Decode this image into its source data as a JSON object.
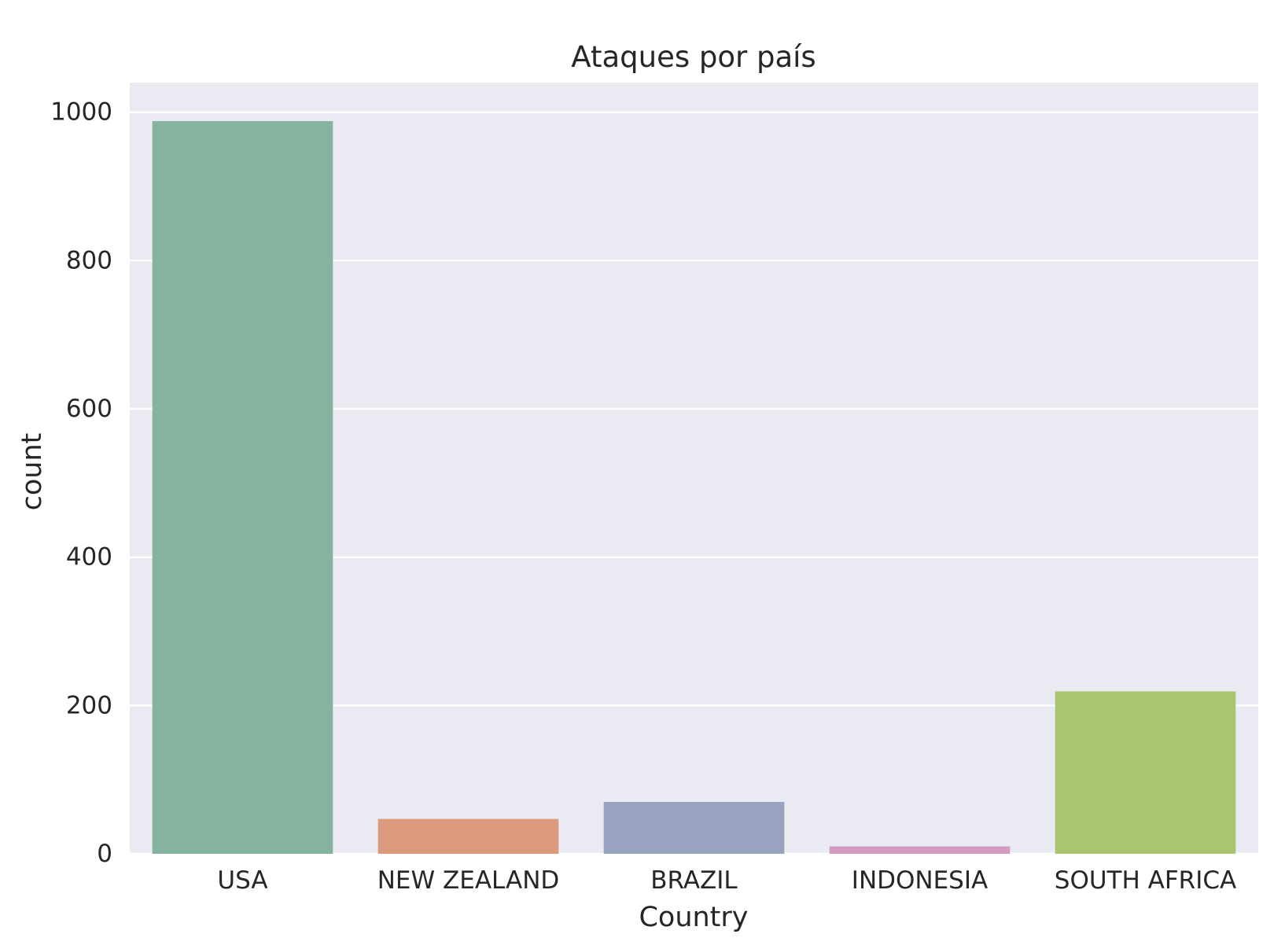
{
  "chart_data": {
    "type": "bar",
    "title": "Ataques por país",
    "xlabel": "Country",
    "ylabel": "count",
    "categories": [
      "USA",
      "NEW ZEALAND",
      "BRAZIL",
      "INDONESIA",
      "SOUTH AFRICA"
    ],
    "values": [
      988,
      47,
      70,
      10,
      219
    ],
    "colors": [
      "#84b4a0",
      "#dc9a7d",
      "#98a3bf",
      "#d39bc2",
      "#a9c66f"
    ],
    "ylim": [
      0,
      1040
    ],
    "yticks": [
      0,
      200,
      400,
      600,
      800,
      1000
    ],
    "grid": true,
    "background": "#eaeaf2",
    "grid_color": "#ffffff"
  }
}
